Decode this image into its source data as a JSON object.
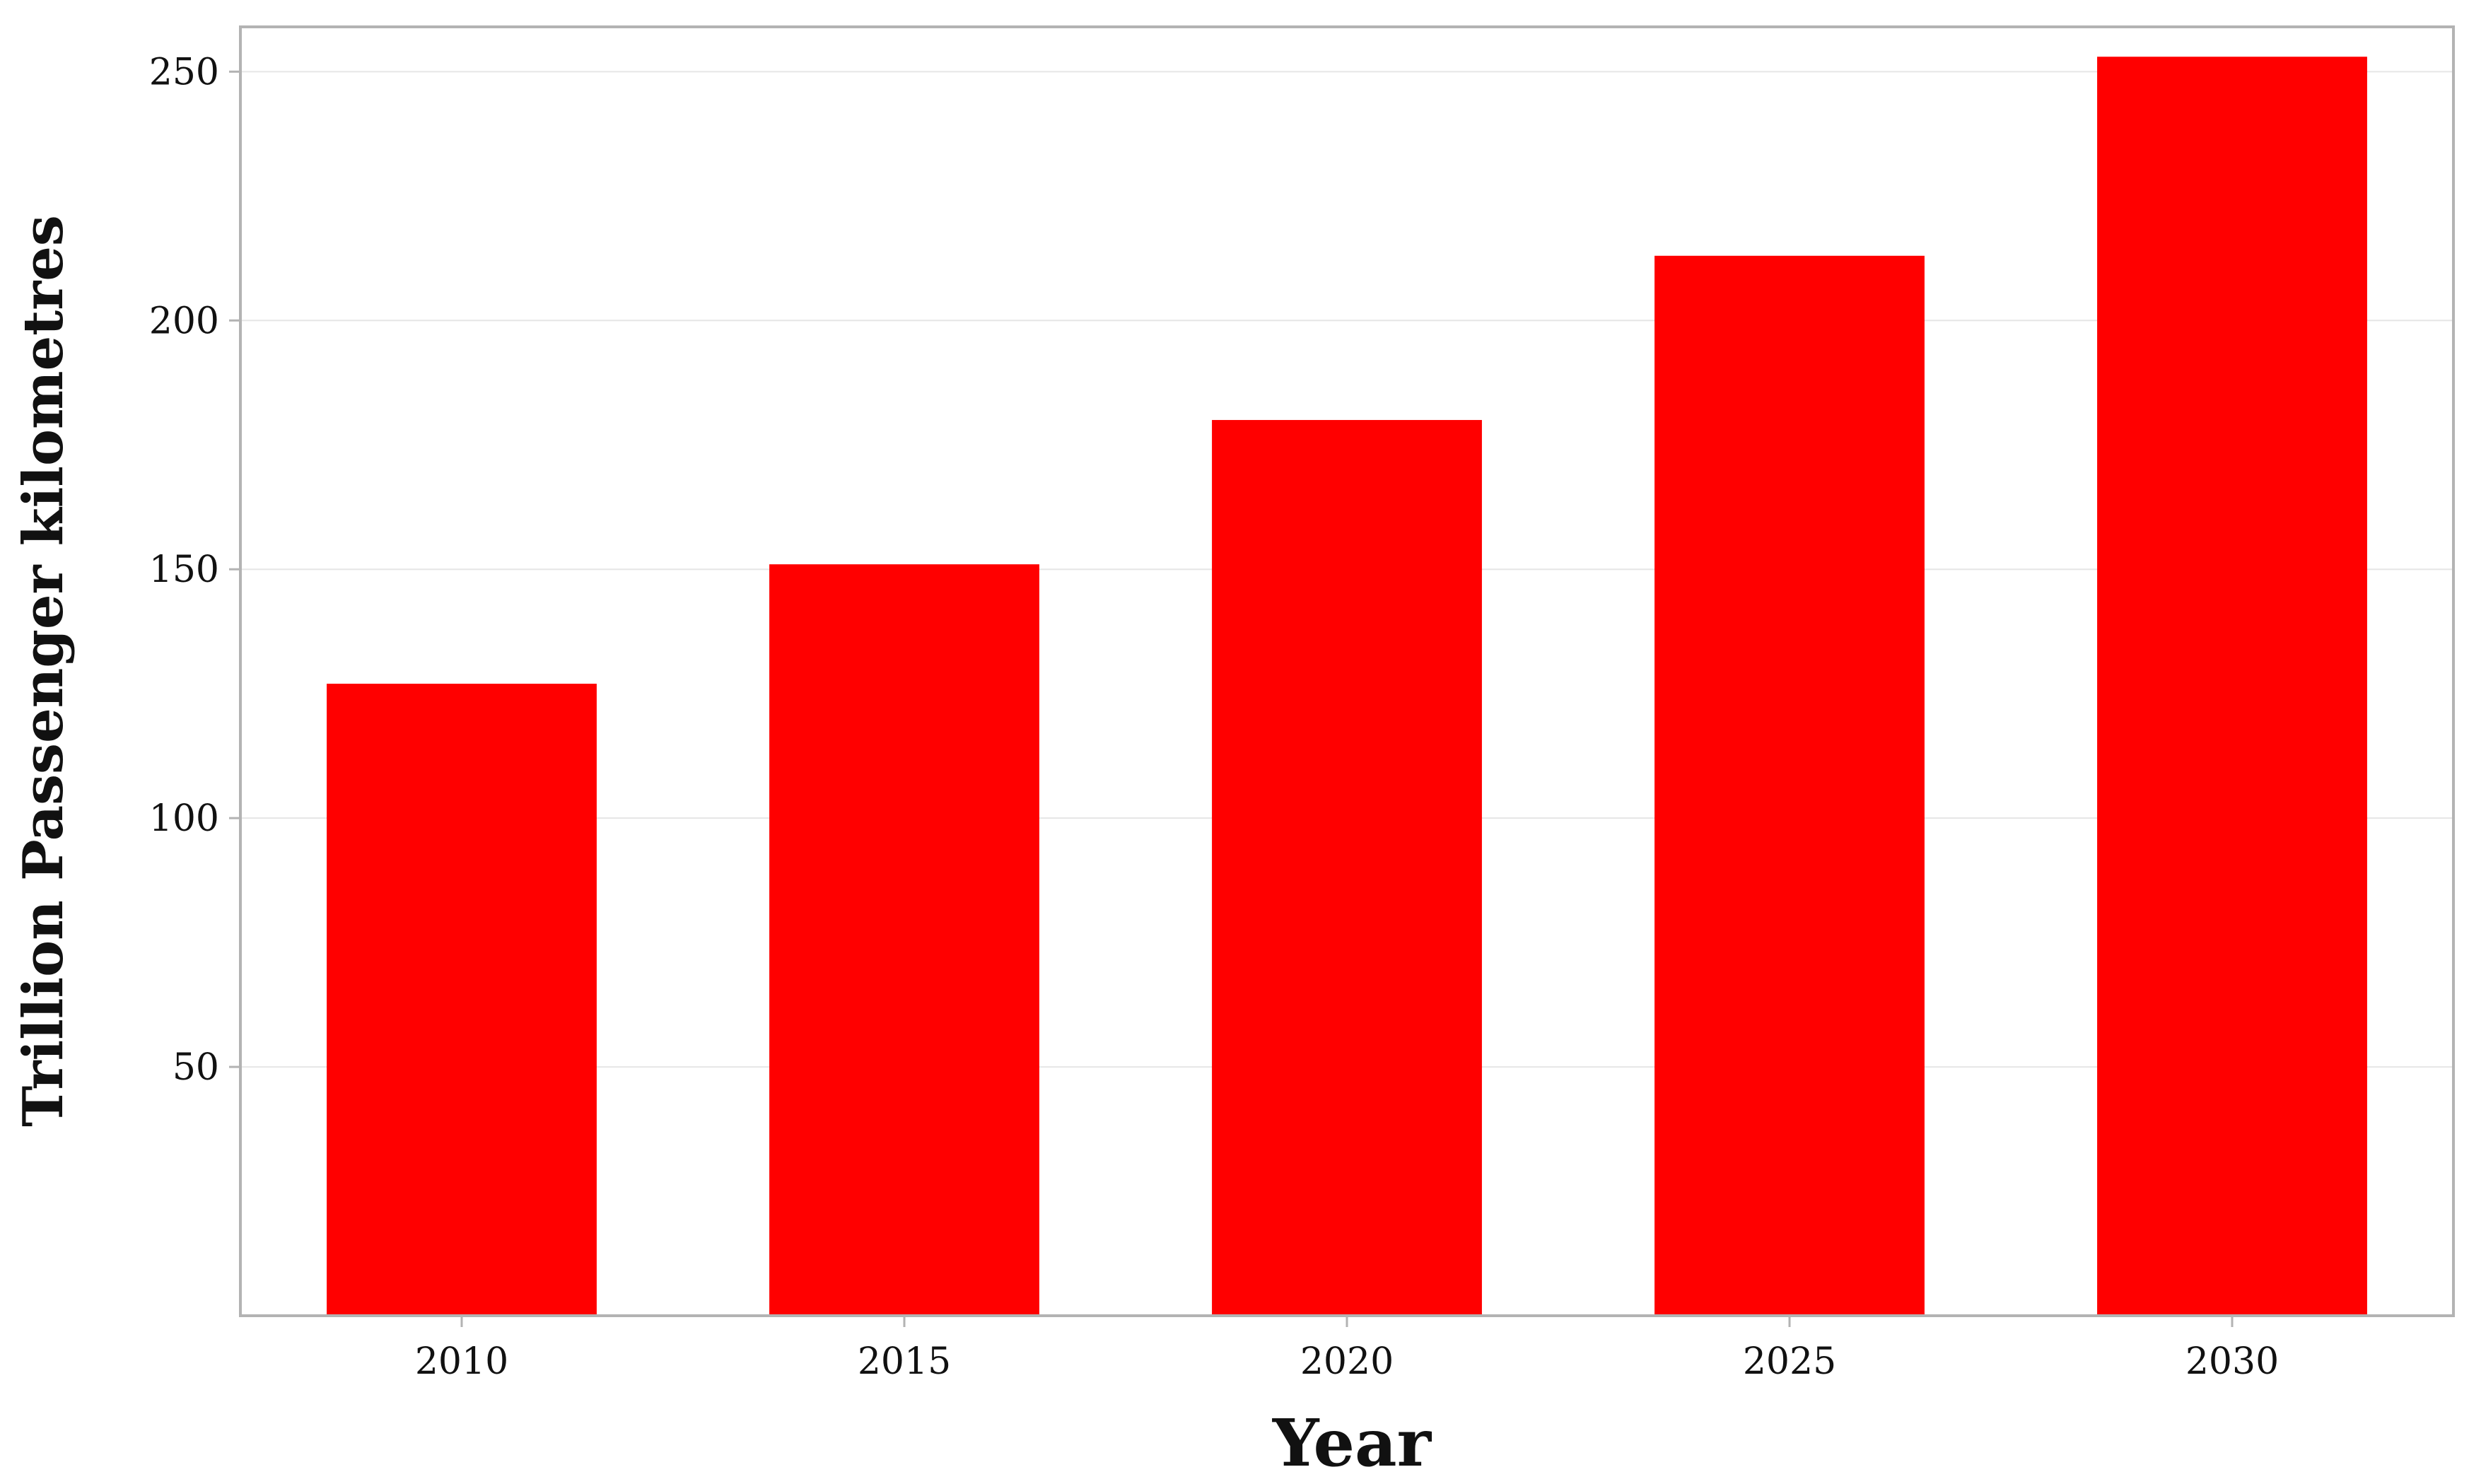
{
  "chart_data": {
    "type": "bar",
    "categories": [
      "2010",
      "2015",
      "2020",
      "2025",
      "2030"
    ],
    "values": [
      127,
      151,
      180,
      213,
      253
    ],
    "title": "",
    "xlabel": "Year",
    "ylabel": "Trillion Passenger kilometres",
    "ylim": [
      0,
      259
    ],
    "yticks": [
      50,
      100,
      150,
      200,
      250
    ],
    "grid": "horizontal, light gray",
    "legend": "none",
    "bar_color": "#ff0000",
    "axis_color": "#b3b3b3",
    "grid_color": "#e6e6e6"
  }
}
